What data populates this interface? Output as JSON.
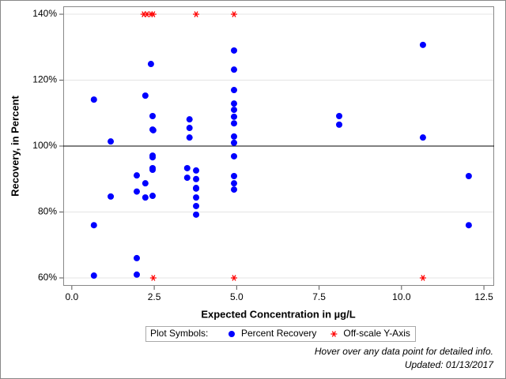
{
  "chart_data": {
    "type": "scatter",
    "x_label": "Expected Concentration in µg/L",
    "y_label": "Recovery, in Percent",
    "xlim": [
      -0.26,
      12.81
    ],
    "ylim": [
      57.6,
      142.4
    ],
    "xticks": [
      {
        "value": 0,
        "label": "0.0"
      },
      {
        "value": 2.5,
        "label": "2.5"
      },
      {
        "value": 5,
        "label": "5.0"
      },
      {
        "value": 7.5,
        "label": "7.5"
      },
      {
        "value": 10,
        "label": "10.0"
      },
      {
        "value": 12.5,
        "label": "12.5"
      }
    ],
    "yticks": [
      {
        "value": 60,
        "label": "60%"
      },
      {
        "value": 80,
        "label": "80%"
      },
      {
        "value": 100,
        "label": "100%"
      },
      {
        "value": 120,
        "label": "120%"
      },
      {
        "value": 140,
        "label": "140%"
      }
    ],
    "grid": true,
    "ref_line": 100,
    "legend_title": "Plot Symbols:",
    "series": [
      {
        "name": "Percent Recovery",
        "color": "#0000ff",
        "marker": "circle",
        "x": [
          0.67,
          0.67,
          0.67,
          1.18,
          1.18,
          1.97,
          1.97,
          1.97,
          1.97,
          2.23,
          2.23,
          2.23,
          2.4,
          2.45,
          2.45,
          2.45,
          2.45,
          2.45,
          2.45,
          2.45,
          2.47,
          3.5,
          3.5,
          3.57,
          3.57,
          3.57,
          3.77,
          3.77,
          3.77,
          3.77,
          3.77,
          3.77,
          3.77,
          4.92,
          4.92,
          4.92,
          4.92,
          4.92,
          4.92,
          4.92,
          4.92,
          4.92,
          4.92,
          4.92,
          4.92,
          4.92,
          8.11,
          8.11,
          10.65,
          10.65,
          12.04,
          12.04
        ],
        "values": [
          114.1,
          76,
          60.7,
          101.4,
          84.7,
          91.1,
          86.2,
          66,
          61,
          115.3,
          88.7,
          84.4,
          124.9,
          109.1,
          105,
          97.1,
          96.6,
          93.3,
          92.8,
          84.9,
          104.8,
          93.3,
          90.4,
          108.1,
          105.5,
          102.6,
          92.6,
          90,
          87.1,
          84.4,
          81.8,
          79.2,
          87.3,
          129,
          123.2,
          117,
          112.9,
          111,
          108.9,
          106.9,
          102.9,
          101,
          96.9,
          90.9,
          88.7,
          86.8,
          109.1,
          106.5,
          130.7,
          102.6,
          90.9,
          76
        ]
      },
      {
        "name": "Off-scale Y-Axis",
        "color": "#ff0000",
        "marker": "asterisk",
        "x": [
          2.18,
          2.28,
          2.4,
          2.47,
          3.77,
          4.92,
          2.47,
          4.92,
          10.65
        ],
        "values": [
          140,
          140,
          140,
          140,
          140,
          140,
          60,
          60,
          60
        ]
      }
    ],
    "footnotes": [
      "Hover over any data point for detailed info.",
      "Updated: 01/13/2017"
    ]
  }
}
